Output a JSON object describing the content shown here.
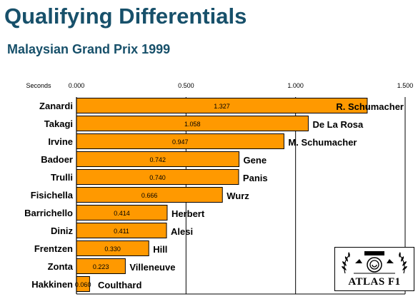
{
  "header": {
    "title": "Qualifying Differentials",
    "subtitle": "Malaysian Grand Prix 1999"
  },
  "logo": {
    "text": "ATLAS F1",
    "icon": "laurel-crest-icon"
  },
  "colors": {
    "bar": "#ff9900",
    "title": "#17506a",
    "grid": "#000000"
  },
  "chart_data": {
    "type": "bar",
    "orientation": "horizontal",
    "xlabel": "Seconds",
    "xlim": [
      0,
      1.5
    ],
    "xticks": [
      "0.000",
      "0.500",
      "1.000",
      "1.500"
    ],
    "grid": true,
    "bars": [
      {
        "left_driver": "Zanardi",
        "right_driver": "R. Schumacher",
        "value": 1.327,
        "label": "1.327"
      },
      {
        "left_driver": "Takagi",
        "right_driver": "De La Rosa",
        "value": 1.058,
        "label": "1.058"
      },
      {
        "left_driver": "Irvine",
        "right_driver": "M. Schumacher",
        "value": 0.947,
        "label": "0.947"
      },
      {
        "left_driver": "Badoer",
        "right_driver": "Gene",
        "value": 0.742,
        "label": "0.742"
      },
      {
        "left_driver": "Trulli",
        "right_driver": "Panis",
        "value": 0.74,
        "label": "0.740"
      },
      {
        "left_driver": "Fisichella",
        "right_driver": "Wurz",
        "value": 0.666,
        "label": "0.666"
      },
      {
        "left_driver": "Barrichello",
        "right_driver": "Herbert",
        "value": 0.414,
        "label": "0.414"
      },
      {
        "left_driver": "Diniz",
        "right_driver": "Alesi",
        "value": 0.411,
        "label": "0.411"
      },
      {
        "left_driver": "Frentzen",
        "right_driver": "Hill",
        "value": 0.33,
        "label": "0.330"
      },
      {
        "left_driver": "Zonta",
        "right_driver": "Villeneuve",
        "value": 0.223,
        "label": "0.223"
      },
      {
        "left_driver": "Hakkinen",
        "right_driver": "Coulthard",
        "value": 0.06,
        "label": "0.060"
      }
    ]
  }
}
